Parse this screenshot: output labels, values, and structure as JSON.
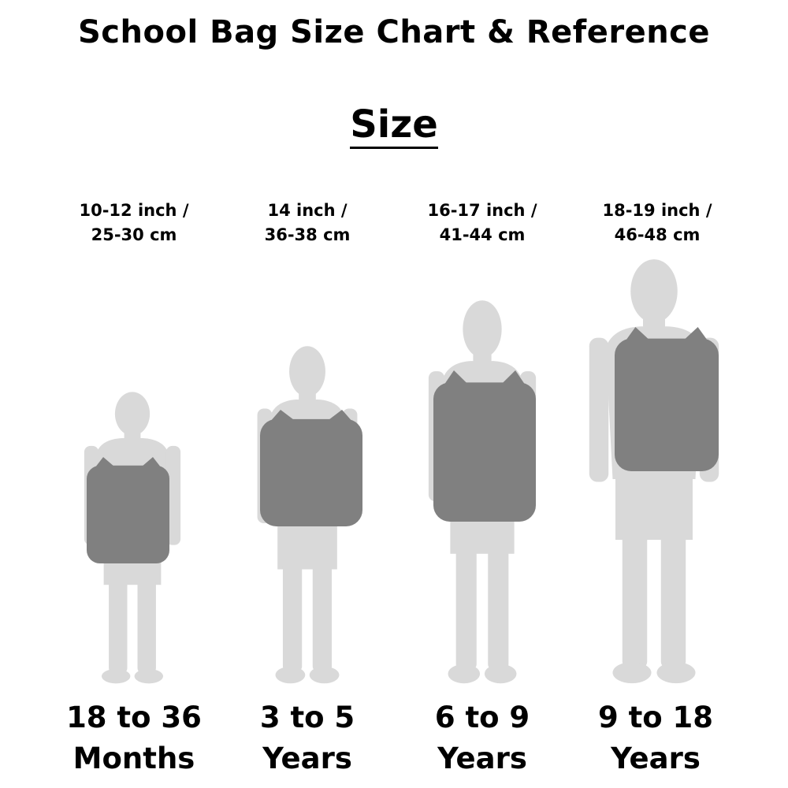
{
  "title": "School Bag Size Chart & Reference",
  "subtitle": "Size",
  "colors": {
    "silhouette": "#d9d9d9",
    "backpack": "#808080",
    "text": "#000000"
  },
  "columns": [
    {
      "size_line1": "10-12 inch /",
      "size_line2": "25-30 cm",
      "age_line1": "18 to 36",
      "age_line2": "Months"
    },
    {
      "size_line1": "14 inch /",
      "size_line2": "36-38 cm",
      "age_line1": "3 to 5",
      "age_line2": "Years"
    },
    {
      "size_line1": "16-17 inch /",
      "size_line2": "41-44 cm",
      "age_line1": "6 to 9",
      "age_line2": "Years"
    },
    {
      "size_line1": "18-19 inch /",
      "size_line2": "46-48 cm",
      "age_line1": "9 to 18",
      "age_line2": "Years"
    }
  ]
}
